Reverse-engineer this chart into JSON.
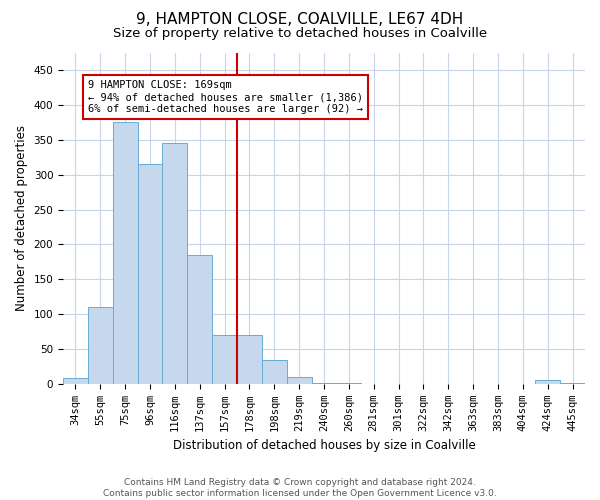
{
  "title": "9, HAMPTON CLOSE, COALVILLE, LE67 4DH",
  "subtitle": "Size of property relative to detached houses in Coalville",
  "xlabel": "Distribution of detached houses by size in Coalville",
  "ylabel": "Number of detached properties",
  "categories": [
    "34sqm",
    "55sqm",
    "75sqm",
    "96sqm",
    "116sqm",
    "137sqm",
    "157sqm",
    "178sqm",
    "198sqm",
    "219sqm",
    "240sqm",
    "260sqm",
    "281sqm",
    "301sqm",
    "322sqm",
    "342sqm",
    "363sqm",
    "383sqm",
    "404sqm",
    "424sqm",
    "445sqm"
  ],
  "values": [
    8,
    110,
    375,
    315,
    345,
    185,
    70,
    70,
    35,
    10,
    2,
    1,
    0,
    0,
    0,
    0,
    0,
    0,
    0,
    5,
    2
  ],
  "bar_color": "#c5d8ee",
  "bar_edge_color": "#6aaad4",
  "vline_x_index": 7,
  "vline_color": "#cc0000",
  "annotation_text": "9 HAMPTON CLOSE: 169sqm\n← 94% of detached houses are smaller (1,386)\n6% of semi-detached houses are larger (92) →",
  "annotation_box_color": "#cc0000",
  "ylim": [
    0,
    475
  ],
  "yticks": [
    0,
    50,
    100,
    150,
    200,
    250,
    300,
    350,
    400,
    450
  ],
  "footer": "Contains HM Land Registry data © Crown copyright and database right 2024.\nContains public sector information licensed under the Open Government Licence v3.0.",
  "background_color": "#ffffff",
  "grid_color": "#c8d4e8",
  "title_fontsize": 11,
  "subtitle_fontsize": 9.5,
  "axis_label_fontsize": 8.5,
  "tick_fontsize": 7.5,
  "footer_fontsize": 6.5,
  "annot_fontsize": 7.5
}
